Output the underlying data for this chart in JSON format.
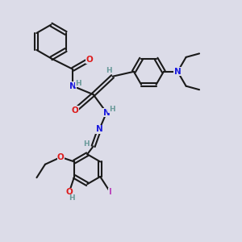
{
  "bg_color": "#dcdce8",
  "bond_color": "#1a1a1a",
  "bond_width": 1.5,
  "atom_colors": {
    "H": "#6a9a9a",
    "N": "#1a1add",
    "O": "#dd1a1a",
    "I": "#bb44bb"
  },
  "font_size_atom": 7.5,
  "font_size_h": 6.5
}
